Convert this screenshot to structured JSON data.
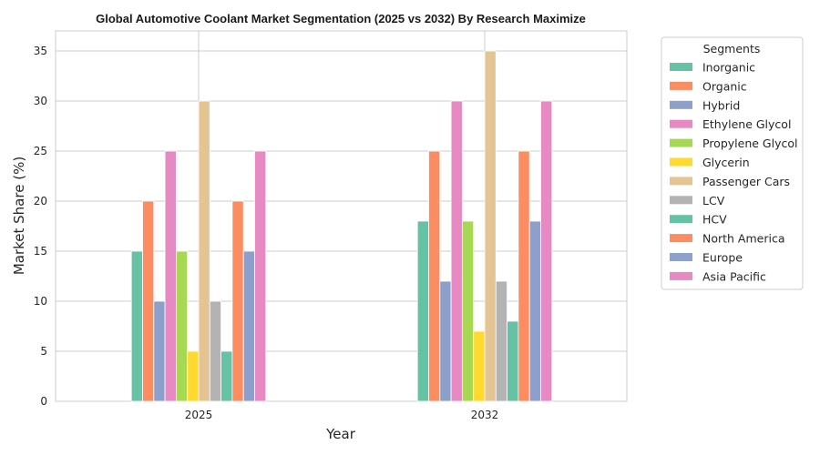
{
  "chart_data": {
    "type": "bar",
    "title": "Global Automotive Coolant Market Segmentation (2025 vs 2032) By Research Maximize",
    "xlabel": "Year",
    "ylabel": "Market Share (%)",
    "categories": [
      "2025",
      "2032"
    ],
    "ylim": [
      0,
      37
    ],
    "yticks": [
      0,
      5,
      10,
      15,
      20,
      25,
      30,
      35
    ],
    "grid": true,
    "legend": {
      "title": "Segments",
      "placement": "outside-right"
    },
    "series": [
      {
        "name": "Inorganic",
        "color": "#66c2a5",
        "values": [
          15,
          18
        ]
      },
      {
        "name": "Organic",
        "color": "#fc8d62",
        "values": [
          20,
          25
        ]
      },
      {
        "name": "Hybrid",
        "color": "#8da0cb",
        "values": [
          10,
          12
        ]
      },
      {
        "name": "Ethylene Glycol",
        "color": "#e78ac3",
        "values": [
          25,
          30
        ]
      },
      {
        "name": "Propylene Glycol",
        "color": "#a6d854",
        "values": [
          15,
          18
        ]
      },
      {
        "name": "Glycerin",
        "color": "#ffd92f",
        "values": [
          5,
          7
        ]
      },
      {
        "name": "Passenger Cars",
        "color": "#e5c494",
        "values": [
          30,
          35
        ]
      },
      {
        "name": "LCV",
        "color": "#b3b3b3",
        "values": [
          10,
          12
        ]
      },
      {
        "name": "HCV",
        "color": "#66c2a5",
        "values": [
          5,
          8
        ]
      },
      {
        "name": "North America",
        "color": "#fc8d62",
        "values": [
          20,
          25
        ]
      },
      {
        "name": "Europe",
        "color": "#8da0cb",
        "values": [
          15,
          18
        ]
      },
      {
        "name": "Asia Pacific",
        "color": "#e78ac3",
        "values": [
          25,
          30
        ]
      }
    ]
  }
}
